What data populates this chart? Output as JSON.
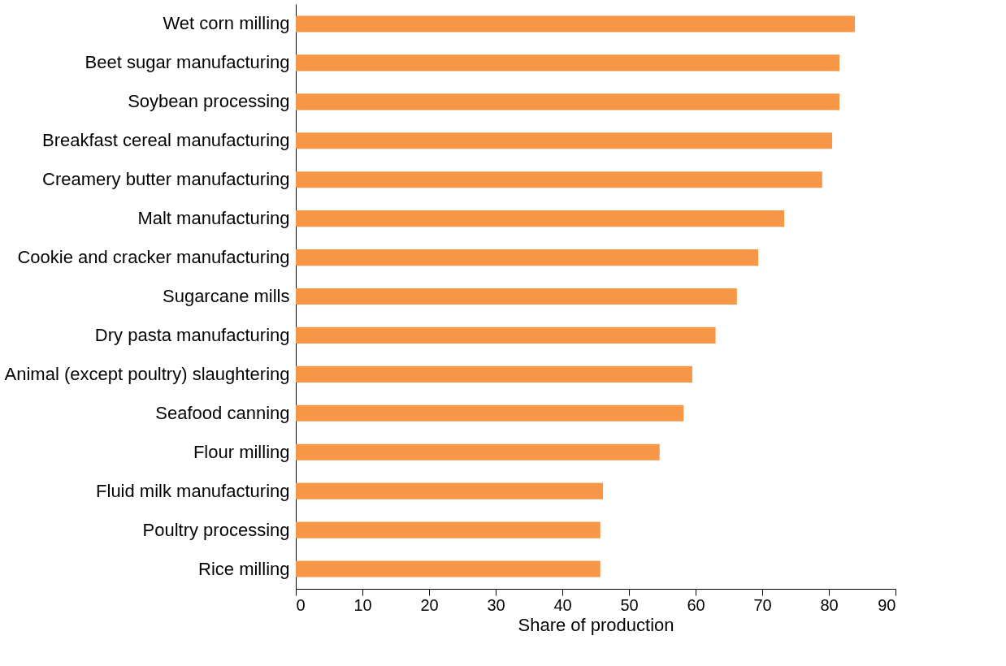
{
  "chart_data": {
    "type": "bar",
    "orientation": "horizontal",
    "xlabel": "Share of production",
    "categories": [
      "Wet corn milling",
      "Beet sugar manufacturing",
      "Soybean processing",
      "Breakfast cereal manufacturing",
      "Creamery butter manufacturing",
      "Malt manufacturing",
      "Cookie and cracker manufacturing",
      "Sugarcane mills",
      "Dry pasta manufacturing",
      "Animal (except poultry) slaughtering",
      "Seafood canning",
      "Flour milling",
      "Fluid milk manufacturing",
      "Poultry processing",
      "Rice milling"
    ],
    "values": [
      83.9,
      81.6,
      81.6,
      80.5,
      79.0,
      73.3,
      69.4,
      66.2,
      63.0,
      59.5,
      58.2,
      54.6,
      46.1,
      45.7,
      45.7
    ],
    "color": "#f79646",
    "xlim": [
      0,
      90
    ],
    "xticks": [
      0,
      10,
      20,
      30,
      40,
      50,
      60,
      70,
      80,
      90
    ],
    "grid": false
  }
}
